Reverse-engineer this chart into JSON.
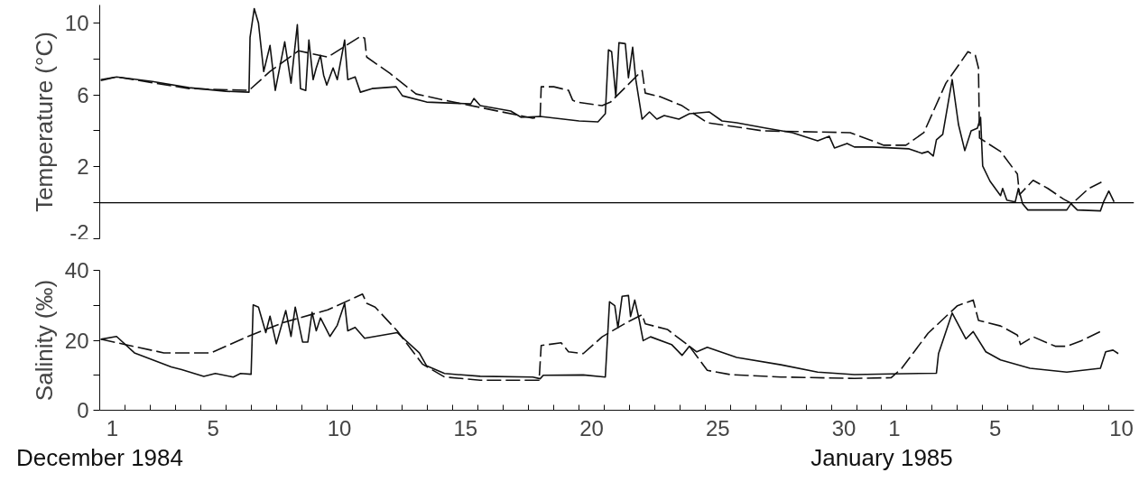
{
  "chart_data": [
    {
      "type": "line",
      "ylabel": "Temperature (°C)",
      "xlim": [
        "1984-12-01",
        "1985-01-11"
      ],
      "ylim": [
        -2,
        11
      ],
      "yticks": [
        -2,
        {
          "value": 0,
          "label": null
        },
        2,
        {
          "value": 4,
          "label": null
        },
        6,
        {
          "value": 8,
          "label": null
        },
        10
      ],
      "tick_labels": "y",
      "grid": false,
      "ref_lines": [
        {
          "axis": "y",
          "value": 0,
          "color": "#000000",
          "line_style": "solid"
        }
      ],
      "series": [
        {
          "color": "#111111",
          "line_style": "solid",
          "x": [
            "1984-12-01T01:00",
            "1984-12-01T16:00",
            "1984-12-03T02:00",
            "1984-12-04T13:00",
            "1984-12-06T00:00",
            "1984-12-06T22:00",
            "1984-12-06T23:00",
            "1984-12-07T03:00",
            "1984-12-07T07:00",
            "1984-12-07T12:00",
            "1984-12-07T18:00",
            "1984-12-07T23:00",
            "1984-12-08T08:00",
            "1984-12-08T14:00",
            "1984-12-08T20:00",
            "1984-12-08T23:00",
            "1984-12-09T04:00",
            "1984-12-09T07:00",
            "1984-12-09T11:00",
            "1984-12-09T14:00",
            "1984-12-09T18:00",
            "1984-12-09T21:00",
            "1984-12-10T00:00",
            "1984-12-10T06:00",
            "1984-12-10T10:00",
            "1984-12-10T17:00",
            "1984-12-10T20:00",
            "1984-12-11T03:00",
            "1984-12-11T08:00",
            "1984-12-11T19:00",
            "1984-12-12T18:00",
            "1984-12-13T00:00",
            "1984-12-13T23:00",
            "1984-12-15T17:00",
            "1984-12-15T20:00",
            "1984-12-16T02:00",
            "1984-12-17T07:00",
            "1984-12-17T17:00",
            "1984-12-18T11:00",
            "1984-12-20T00:00",
            "1984-12-20T18:00",
            "1984-12-21T01:00",
            "1984-12-21T04:00",
            "1984-12-21T07:00",
            "1984-12-21T11:00",
            "1984-12-21T14:00",
            "1984-12-21T20:00",
            "1984-12-21T23:00",
            "1984-12-22T03:00",
            "1984-12-22T06:00",
            "1984-12-22T12:00",
            "1984-12-22T19:00",
            "1984-12-23T02:00",
            "1984-12-23T09:00",
            "1984-12-23T23:00",
            "1984-12-24T09:00",
            "1984-12-25T04:00",
            "1984-12-25T16:00",
            "1984-12-26T06:00",
            "1984-12-27T10:00",
            "1984-12-28T11:00",
            "1984-12-29T11:00",
            "1984-12-29T22:00",
            "1984-12-30T03:00",
            "1984-12-30T15:00",
            "1984-12-30T22:00",
            "1984-12-31T15:00",
            "1985-01-02T02:00",
            "1985-01-02T14:00",
            "1985-01-02T20:00",
            "1985-01-03T01:00",
            "1985-01-03T04:00",
            "1985-01-03T10:00",
            "1985-01-03T19:00",
            "1985-01-04T01:00",
            "1985-01-04T07:00",
            "1985-01-04T13:00",
            "1985-01-04T19:00",
            "1985-01-04T22:00",
            "1985-01-05T00:00",
            "1985-01-05T07:00",
            "1985-01-05T17:00",
            "1985-01-05T19:00",
            "1985-01-05T23:00",
            "1985-01-06T07:00",
            "1985-01-06T10:00",
            "1985-01-06T14:00",
            "1985-01-06T19:00",
            "1985-01-08T08:00",
            "1985-01-08T12:00",
            "1985-01-08T18:00",
            "1985-01-09T16:00",
            "1985-01-09T19:00",
            "1985-01-10T00:00",
            "1985-01-10T05:00"
          ],
          "values": [
            6.8,
            7.0,
            6.75,
            6.4,
            6.2,
            6.15,
            9.2,
            10.8,
            10.0,
            7.3,
            8.75,
            6.25,
            8.95,
            6.65,
            9.9,
            6.35,
            6.25,
            9.05,
            6.85,
            7.5,
            8.2,
            7.1,
            6.55,
            7.5,
            6.85,
            9.05,
            6.85,
            7.0,
            6.15,
            6.35,
            6.45,
            5.95,
            5.6,
            5.5,
            5.8,
            5.4,
            5.1,
            4.75,
            4.8,
            4.55,
            4.5,
            4.95,
            8.5,
            8.4,
            5.9,
            8.9,
            8.85,
            6.95,
            8.65,
            6.85,
            4.65,
            5.05,
            4.65,
            4.85,
            4.65,
            4.95,
            5.05,
            4.55,
            4.45,
            4.15,
            3.9,
            3.45,
            3.7,
            3.05,
            3.3,
            3.1,
            3.1,
            3.0,
            2.75,
            2.85,
            2.6,
            3.5,
            3.8,
            6.85,
            4.35,
            2.9,
            4.0,
            4.15,
            4.75,
            2.05,
            1.2,
            0.4,
            0.8,
            0.15,
            0.05,
            0.8,
            -0.05,
            -0.4,
            -0.4,
            -0.05,
            -0.4,
            -0.45,
            0.05,
            0.65,
            0.05
          ]
        },
        {
          "color": "#111111",
          "line_style": "dashed",
          "x": [
            "1984-12-01T01:00",
            "1984-12-01T16:00",
            "1984-12-04T13:00",
            "1984-12-06T22:00",
            "1984-12-07T18:00",
            "1984-12-08T21:00",
            "1984-12-10T01:00",
            "1984-12-11T08:00",
            "1984-12-11T12:00",
            "1984-12-11T14:00",
            "1984-12-12T12:00",
            "1984-12-13T13:00",
            "1984-12-14T16:00",
            "1984-12-16T02:00",
            "1984-12-18T04:00",
            "1984-12-18T11:00",
            "1984-12-18T12:00",
            "1984-12-19T00:00",
            "1984-12-19T14:00",
            "1984-12-19T18:00",
            "1984-12-19T22:00",
            "1984-12-20T22:00",
            "1984-12-21T06:00",
            "1984-12-22T12:00",
            "1984-12-22T15:00",
            "1984-12-23T05:00",
            "1984-12-24T02:00",
            "1984-12-25T02:00",
            "1984-12-27T07:00",
            "1984-12-30T18:00",
            "1985-01-01T02:00",
            "1985-01-01T23:00",
            "1985-01-02T16:00",
            "1985-01-03T13:00",
            "1985-01-04T10:00",
            "1985-01-04T17:00",
            "1985-01-04T20:00",
            "1985-01-04T21:00",
            "1985-01-05T17:00",
            "1985-01-06T09:00",
            "1985-01-06T11:00",
            "1985-01-07T00:00",
            "1985-01-07T14:00",
            "1985-01-08T05:00",
            "1985-01-08T13:00",
            "1985-01-09T05:00",
            "1985-01-09T17:00"
          ],
          "values": [
            6.85,
            7.0,
            6.35,
            6.25,
            7.3,
            8.45,
            8.1,
            9.25,
            9.15,
            8.1,
            7.2,
            6.05,
            5.7,
            5.3,
            4.7,
            4.8,
            6.45,
            6.45,
            6.25,
            5.7,
            5.6,
            5.4,
            5.6,
            7.35,
            6.1,
            5.9,
            5.4,
            4.45,
            4.0,
            3.9,
            3.2,
            3.2,
            3.9,
            6.65,
            8.4,
            8.2,
            7.5,
            3.6,
            2.85,
            1.6,
            0.45,
            1.25,
            0.8,
            0.2,
            -0.05,
            0.8,
            1.15
          ]
        }
      ]
    },
    {
      "type": "line",
      "ylabel": "Salinity (‰)",
      "xlim": [
        "1984-12-01",
        "1985-01-11"
      ],
      "ylim": [
        0,
        40
      ],
      "yticks": [
        0,
        {
          "value": 10,
          "label": null
        },
        20,
        {
          "value": 30,
          "label": null
        },
        40
      ],
      "xticks": [
        {
          "value": "1984-12-01T12:00",
          "label": "1"
        },
        {
          "value": "1984-12-05T12:00",
          "label": "5"
        },
        {
          "value": "1984-12-10T12:00",
          "label": "10"
        },
        {
          "value": "1984-12-15T12:00",
          "label": "15"
        },
        {
          "value": "1984-12-20T12:00",
          "label": "20"
        },
        {
          "value": "1984-12-25T12:00",
          "label": "25"
        },
        {
          "value": "1984-12-30T12:00",
          "label": "30"
        },
        {
          "value": "1985-01-01T12:00",
          "label": "1"
        },
        {
          "value": "1985-01-05T12:00",
          "label": "5"
        },
        {
          "value": "1985-01-10T12:00",
          "label": "10"
        },
        {
          "value": "1984-12-02",
          "label": null
        },
        {
          "value": "1984-12-03",
          "label": null
        },
        {
          "value": "1984-12-04",
          "label": null
        },
        {
          "value": "1984-12-05",
          "label": null
        },
        {
          "value": "1984-12-06",
          "label": null
        },
        {
          "value": "1984-12-07",
          "label": null
        },
        {
          "value": "1984-12-08",
          "label": null
        },
        {
          "value": "1984-12-09",
          "label": null
        },
        {
          "value": "1984-12-10",
          "label": null
        },
        {
          "value": "1984-12-11",
          "label": null
        },
        {
          "value": "1984-12-12",
          "label": null
        },
        {
          "value": "1984-12-13",
          "label": null
        },
        {
          "value": "1984-12-14",
          "label": null
        },
        {
          "value": "1984-12-15",
          "label": null
        },
        {
          "value": "1984-12-16",
          "label": null
        },
        {
          "value": "1984-12-17",
          "label": null
        },
        {
          "value": "1984-12-18",
          "label": null
        },
        {
          "value": "1984-12-19",
          "label": null
        },
        {
          "value": "1984-12-20",
          "label": null
        },
        {
          "value": "1984-12-21",
          "label": null
        },
        {
          "value": "1984-12-22",
          "label": null
        },
        {
          "value": "1984-12-23",
          "label": null
        },
        {
          "value": "1984-12-24",
          "label": null
        },
        {
          "value": "1984-12-25",
          "label": null
        },
        {
          "value": "1984-12-26",
          "label": null
        },
        {
          "value": "1984-12-27",
          "label": null
        },
        {
          "value": "1984-12-28",
          "label": null
        },
        {
          "value": "1984-12-29",
          "label": null
        },
        {
          "value": "1984-12-30",
          "label": null
        },
        {
          "value": "1984-12-31",
          "label": null
        },
        {
          "value": "1985-01-01",
          "label": null
        },
        {
          "value": "1985-01-02",
          "label": null
        },
        {
          "value": "1985-01-03",
          "label": null
        },
        {
          "value": "1985-01-04",
          "label": null
        },
        {
          "value": "1985-01-05",
          "label": null
        },
        {
          "value": "1985-01-06",
          "label": null
        },
        {
          "value": "1985-01-07",
          "label": null
        },
        {
          "value": "1985-01-08",
          "label": null
        },
        {
          "value": "1985-01-09",
          "label": null
        },
        {
          "value": "1985-01-10",
          "label": null
        }
      ],
      "grid": false,
      "annotations": [
        "December 1984",
        "January 1985"
      ],
      "series": [
        {
          "color": "#111111",
          "line_style": "solid",
          "x": [
            "1984-12-01T01:00",
            "1984-12-01T16:00",
            "1984-12-02T09:00",
            "1984-12-03T20:00",
            "1984-12-04T06:00",
            "1984-12-05T03:00",
            "1984-12-05T14:00",
            "1984-12-06T07:00",
            "1984-12-06T14:00",
            "1984-12-07T00:00",
            "1984-12-07T02:00",
            "1984-12-07T07:00",
            "1984-12-07T14:00",
            "1984-12-07T18:00",
            "1984-12-08T00:00",
            "1984-12-08T09:00",
            "1984-12-08T14:00",
            "1984-12-08T18:00",
            "1984-12-09T01:00",
            "1984-12-09T06:00",
            "1984-12-09T10:00",
            "1984-12-09T14:00",
            "1984-12-09T18:00",
            "1984-12-10T03:00",
            "1984-12-10T10:00",
            "1984-12-10T17:00",
            "1984-12-10T20:00",
            "1984-12-11T03:00",
            "1984-12-11T12:00",
            "1984-12-12T19:00",
            "1984-12-13T16:00",
            "1984-12-13T23:00",
            "1984-12-14T16:00",
            "1984-12-16T02:00",
            "1984-12-18T04:00",
            "1984-12-18T11:00",
            "1984-12-18T14:00",
            "1984-12-20T04:00",
            "1984-12-21T01:00",
            "1984-12-21T05:00",
            "1984-12-21T10:00",
            "1984-12-21T13:00",
            "1984-12-21T17:00",
            "1984-12-21T23:00",
            "1984-12-22T01:00",
            "1984-12-22T05:00",
            "1984-12-22T09:00",
            "1984-12-22T13:00",
            "1984-12-22T20:00",
            "1984-12-23T16:00",
            "1984-12-24T02:00",
            "1984-12-24T09:00",
            "1984-12-24T16:00",
            "1984-12-25T02:00",
            "1984-12-26T06:00",
            "1984-12-28T00:00",
            "1984-12-29T11:00",
            "1984-12-30T22:00",
            "1985-01-01T09:00",
            "1985-01-03T04:00",
            "1985-01-03T06:00",
            "1985-01-03T19:00",
            "1985-01-04T08:00",
            "1985-01-04T15:00",
            "1985-01-05T03:00",
            "1985-01-05T17:00",
            "1985-01-06T21:00",
            "1985-01-08T08:00",
            "1985-01-09T16:00",
            "1985-01-09T21:00",
            "1985-01-10T04:00",
            "1985-01-10T09:00"
          ],
          "values": [
            20.3,
            21.1,
            16.4,
            12.4,
            11.6,
            9.7,
            10.5,
            9.5,
            10.5,
            10.3,
            30.1,
            29.5,
            22.2,
            26.9,
            19.0,
            28.5,
            21.1,
            29.5,
            19.5,
            19.5,
            28.0,
            22.7,
            26.4,
            21.1,
            24.3,
            30.6,
            22.7,
            23.7,
            20.6,
            22.2,
            16.4,
            12.7,
            10.5,
            9.7,
            9.5,
            9.0,
            10.0,
            10.1,
            9.5,
            31.0,
            29.9,
            23.6,
            32.6,
            32.8,
            26.8,
            31.5,
            26.2,
            19.9,
            21.0,
            18.8,
            15.7,
            18.3,
            16.7,
            18.0,
            15.1,
            13.0,
            10.9,
            10.2,
            10.4,
            10.6,
            16.2,
            27.8,
            20.4,
            22.5,
            16.7,
            14.4,
            12.0,
            10.9,
            12.0,
            16.7,
            17.2,
            16.2
          ]
        },
        {
          "color": "#111111",
          "line_style": "dashed",
          "x": [
            "1984-12-01T01:00",
            "1984-12-03T13:00",
            "1984-12-05T10:00",
            "1984-12-06T21:00",
            "1984-12-08T07:00",
            "1984-12-10T01:00",
            "1984-12-11T10:00",
            "1984-12-11T14:00",
            "1984-12-11T22:00",
            "1984-12-12T19:00",
            "1984-12-13T19:00",
            "1984-12-14T16:00",
            "1984-12-16T02:00",
            "1984-12-18T10:00",
            "1984-12-18T12:00",
            "1984-12-19T07:00",
            "1984-12-19T14:00",
            "1984-12-20T04:00",
            "1984-12-20T22:00",
            "1984-12-21T22:00",
            "1984-12-22T12:00",
            "1984-12-22T15:00",
            "1984-12-23T12:00",
            "1984-12-24T09:00",
            "1984-12-25T02:00",
            "1984-12-26T00:00",
            "1984-12-28T00:00",
            "1984-12-30T22:00",
            "1985-01-01T09:00",
            "1985-01-01T19:00",
            "1985-01-02T20:00",
            "1985-01-04T00:00",
            "1985-01-04T15:00",
            "1985-01-04T20:00",
            "1985-01-05T17:00",
            "1985-01-06T09:00",
            "1985-01-06T12:00",
            "1985-01-07T00:00",
            "1985-01-07T21:00",
            "1985-01-08T08:00",
            "1985-01-08T22:00",
            "1985-01-09T16:00"
          ],
          "values": [
            20.3,
            16.4,
            16.4,
            21.1,
            25.1,
            28.7,
            33.2,
            30.6,
            29.5,
            22.7,
            13.2,
            9.5,
            8.6,
            8.6,
            18.5,
            19.3,
            16.7,
            16.2,
            21.0,
            25.2,
            27.3,
            24.7,
            23.1,
            18.3,
            11.4,
            10.2,
            9.5,
            9.1,
            9.3,
            12.0,
            22.0,
            29.9,
            31.5,
            25.7,
            24.1,
            21.5,
            18.8,
            21.0,
            18.3,
            18.3,
            19.9,
            22.5
          ]
        }
      ]
    }
  ]
}
